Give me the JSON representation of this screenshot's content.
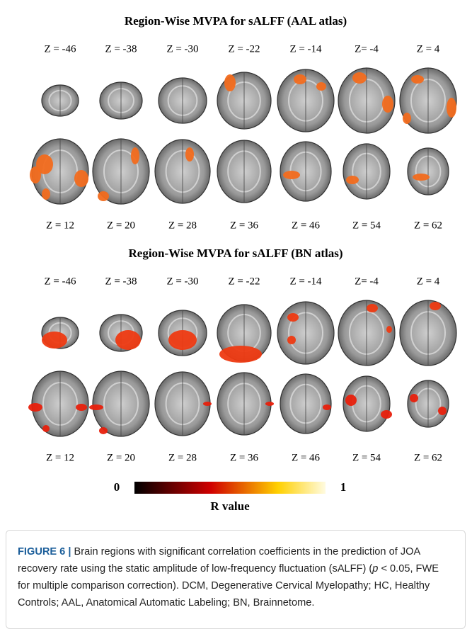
{
  "panels": [
    {
      "title": "Region-Wise MVPA for sALFF (AAL atlas)",
      "top_labels": [
        "Z = -46",
        "Z = -38",
        "Z = -30",
        "Z = -22",
        "Z = -14",
        "Z= -4",
        "Z = 4"
      ],
      "bottom_labels": [
        "Z = 12",
        "Z = 20",
        "Z = 28",
        "Z = 36",
        "Z = 46",
        "Z = 54",
        "Z = 62"
      ]
    },
    {
      "title": "Region-Wise MVPA for sALFF (BN atlas)",
      "top_labels": [
        "Z = -46",
        "Z = -38",
        "Z = -30",
        "Z = -22",
        "Z = -14",
        "Z= -4",
        "Z = 4"
      ],
      "bottom_labels": [
        "Z = 12",
        "Z = 20",
        "Z = 28",
        "Z = 36",
        "Z = 46",
        "Z = 54",
        "Z = 62"
      ]
    }
  ],
  "colorbar": {
    "min": 0,
    "max": 1,
    "label": "R value"
  },
  "caption": {
    "label": "FIGURE 6 |",
    "text_before": "Brain regions with significant correlation coefficients in the prediction of JOA recovery rate using the static amplitude of low-frequency fluctuation (sALFF) (",
    "italic": "p",
    "text_after": " < 0.05, FWE for multiple comparison correction). DCM, Degenerative Cervical Myelopathy; HC, Healthy Controls; AAL, Anatomical Automatic Labeling; BN, Brainnetome."
  }
}
